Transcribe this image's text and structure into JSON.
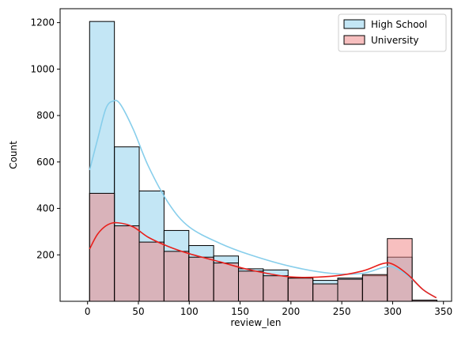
{
  "chart_data": {
    "type": "histogram",
    "xlabel": "review_len",
    "ylabel": "Count",
    "xlim": [
      -27,
      358
    ],
    "ylim": [
      0,
      1260
    ],
    "x_ticks": [
      0,
      50,
      100,
      150,
      200,
      250,
      300,
      350
    ],
    "y_ticks": [
      200,
      400,
      600,
      800,
      1000,
      1200
    ],
    "bin_edges": [
      2,
      26.4,
      50.8,
      75.2,
      99.6,
      124,
      148.4,
      172.8,
      197.2,
      221.6,
      246,
      270.4,
      294.8,
      319.2,
      343.6
    ],
    "legend_position": "top-right",
    "series": [
      {
        "name": "High School",
        "fill_color": "#87ceeb",
        "line_color": "#87ceeb",
        "counts": [
          1205,
          665,
          475,
          305,
          240,
          195,
          140,
          135,
          100,
          90,
          100,
          110,
          190,
          5
        ],
        "kde": [
          [
            2,
            565
          ],
          [
            10,
            700
          ],
          [
            18,
            830
          ],
          [
            25,
            862
          ],
          [
            32,
            850
          ],
          [
            45,
            740
          ],
          [
            60,
            580
          ],
          [
            80,
            420
          ],
          [
            100,
            320
          ],
          [
            130,
            250
          ],
          [
            160,
            200
          ],
          [
            200,
            150
          ],
          [
            240,
            120
          ],
          [
            270,
            120
          ],
          [
            290,
            145
          ],
          [
            300,
            148
          ],
          [
            315,
            110
          ],
          [
            330,
            50
          ],
          [
            343,
            15
          ]
        ]
      },
      {
        "name": "University",
        "fill_color": "#f08080",
        "line_color": "#e8201c",
        "counts": [
          465,
          325,
          255,
          215,
          190,
          165,
          130,
          110,
          100,
          75,
          95,
          115,
          270,
          5
        ],
        "kde": [
          [
            2,
            225
          ],
          [
            10,
            290
          ],
          [
            20,
            330
          ],
          [
            30,
            338
          ],
          [
            45,
            320
          ],
          [
            60,
            275
          ],
          [
            80,
            235
          ],
          [
            100,
            205
          ],
          [
            130,
            170
          ],
          [
            160,
            135
          ],
          [
            200,
            105
          ],
          [
            240,
            108
          ],
          [
            270,
            130
          ],
          [
            290,
            162
          ],
          [
            300,
            160
          ],
          [
            315,
            115
          ],
          [
            330,
            50
          ],
          [
            343,
            15
          ]
        ]
      }
    ]
  }
}
